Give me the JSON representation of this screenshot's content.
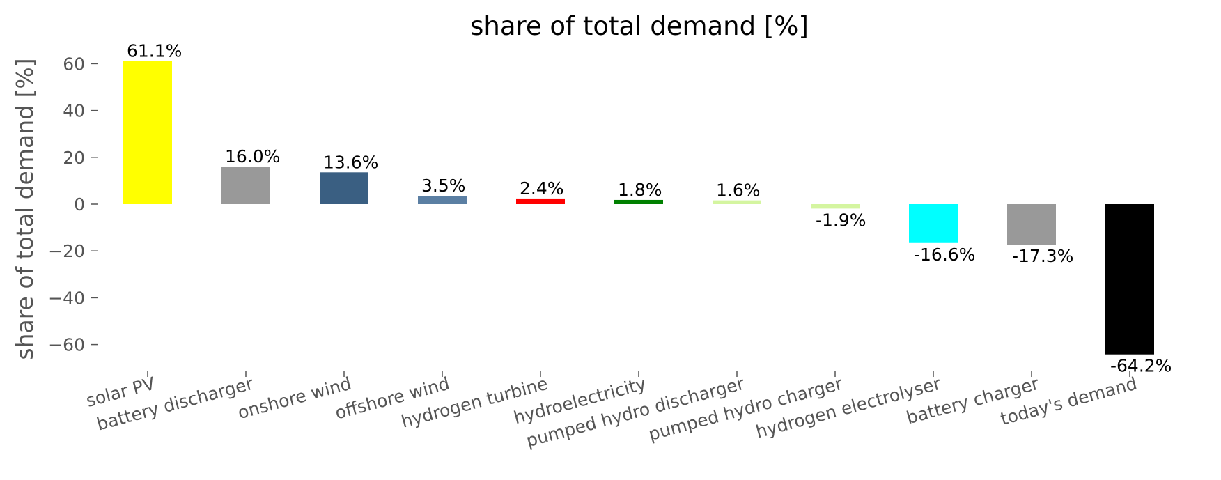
{
  "chart_data": {
    "type": "bar",
    "title": "share of total demand [%]",
    "xlabel": "",
    "ylabel": "share of total demand [%]",
    "ylim": [
      -70,
      70
    ],
    "yticks": [
      60,
      40,
      20,
      0,
      -20,
      -40,
      -60
    ],
    "grid": false,
    "categories": [
      "solar PV",
      "battery discharger",
      "onshore wind",
      "offshore wind",
      "hydrogen turbine",
      "hydroelectricity",
      "pumped hydro discharger",
      "pumped hydro charger",
      "hydrogen electrolyser",
      "battery charger",
      "today's demand"
    ],
    "values": [
      61.1,
      16.0,
      13.6,
      3.5,
      2.4,
      1.8,
      1.6,
      -1.9,
      -16.6,
      -17.3,
      -64.2
    ],
    "value_labels": [
      "61.1%",
      "16.0%",
      "13.6%",
      "3.5%",
      "2.4%",
      "1.8%",
      "1.6%",
      "-1.9%",
      "-16.6%",
      "-17.3%",
      "-64.2%"
    ],
    "colors": [
      "#ffff00",
      "#999999",
      "#3a5f82",
      "#5b7fa3",
      "#ff0000",
      "#008000",
      "#d4f5a0",
      "#d4f5a0",
      "#00ffff",
      "#999999",
      "#000000"
    ]
  }
}
